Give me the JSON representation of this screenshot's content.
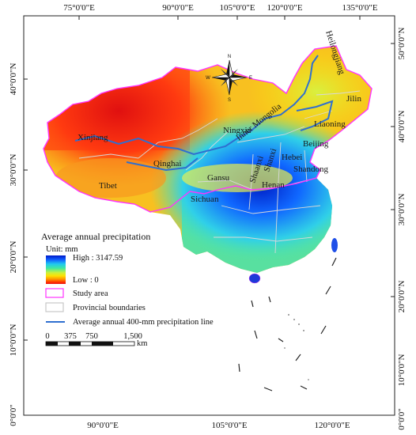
{
  "graticule": {
    "top_labels": [
      "75°0'0\"E",
      "90°0'0\"E",
      "105°0'0\"E",
      "120°0'0\"E",
      "135°0'0\"E"
    ],
    "bottom_labels": [
      "90°0'0\"E",
      "105°0'0\"E",
      "120°0'0\"E"
    ],
    "left_labels": [
      "40°0'0\"N",
      "30°0'0\"N",
      "20°0'0\"N",
      "10°0'0\"N",
      "0°0'0\""
    ],
    "right_labels": [
      "50°0'0\"N",
      "40°0'0\"N",
      "30°0'0\"N",
      "20°0'0\"N",
      "10°0'0\"N",
      "0°0'0\""
    ]
  },
  "provinces": [
    "Xinjiang",
    "Tibet",
    "Qinghai",
    "Gansu",
    "Sichuan",
    "Ningxia",
    "Inner Mongolia",
    "Heilongjiang",
    "Jilin",
    "Liaoning",
    "Beijing",
    "Hebei",
    "Shanxi",
    "Shaanxi",
    "Henan",
    "Shandong"
  ],
  "compass": {
    "n": "N",
    "s": "S",
    "e": "E",
    "w": "W"
  },
  "legend": {
    "title": "Average annual  precipitation",
    "unit": "Unit:  mm",
    "high": "High : 3147.59",
    "low": "Low :  0",
    "study_area": "Study area",
    "provincial_boundaries": "Provincial boundaries",
    "precip_line": "Average annual  400-mm precipitation line",
    "colors": {
      "ramp": [
        "#0018c8",
        "#1060ff",
        "#20c8f0",
        "#40e8a0",
        "#c8f040",
        "#ffe000",
        "#ff9000",
        "#ff3000",
        "#e81010"
      ],
      "study_area": "#ff33ff",
      "provincial_boundaries": "#c8c8c8",
      "precip_line": "#2f6fd0"
    }
  },
  "scale_bar": {
    "ticks": [
      "0",
      "375",
      "750",
      "1,500"
    ],
    "unit": "km"
  }
}
